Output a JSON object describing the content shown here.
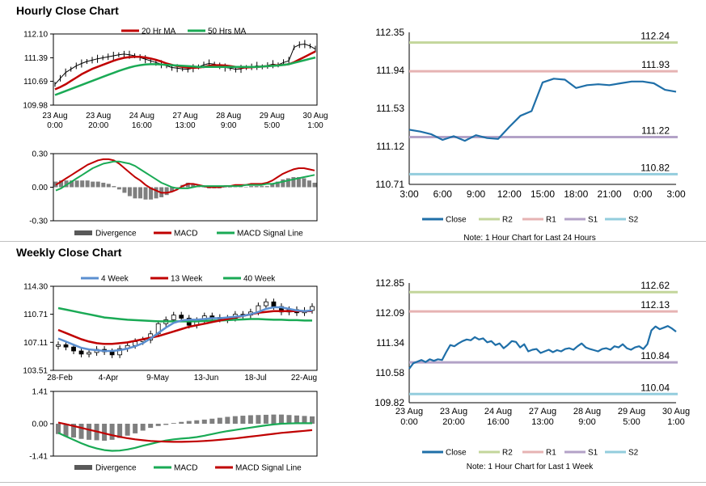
{
  "sections": {
    "hourly_title": "Hourly Close Chart",
    "weekly_title": "Weekly Close Chart"
  },
  "notes": {
    "hourly_levels": "Note: 1 Hour Chart for Last 24 Hours",
    "weekly_levels": "Note: 1 Hour Chart for Last 1 Week"
  },
  "colors": {
    "close": "#1f6fa8",
    "ma_red": "#c00000",
    "ma_green": "#1aaa55",
    "ma_blue": "#5b8fd0",
    "r2": "#c3d69b",
    "r1": "#e6b3b3",
    "s1": "#b3a2c7",
    "s2": "#93cddd",
    "hist": "#7f7f7f"
  },
  "chart_data": [
    {
      "id": "hourly_price",
      "type": "line",
      "legend": [
        "20 Hr MA",
        "50 Hrs MA"
      ],
      "yticks": [
        "112.10",
        "111.39",
        "110.69",
        "109.98"
      ],
      "ylim": [
        109.98,
        112.1
      ],
      "xticks": [
        [
          "23 Aug",
          "0:00"
        ],
        [
          "23 Aug",
          "20:00"
        ],
        [
          "24 Aug",
          "16:00"
        ],
        [
          "27 Aug",
          "13:00"
        ],
        [
          "28 Aug",
          "9:00"
        ],
        [
          "29 Aug",
          "5:00"
        ],
        [
          "30 Aug",
          "1:00"
        ]
      ],
      "close": [
        110.6,
        110.78,
        110.95,
        111.05,
        111.15,
        111.22,
        111.28,
        111.32,
        111.36,
        111.39,
        111.42,
        111.45,
        111.48,
        111.5,
        111.48,
        111.45,
        111.4,
        111.35,
        111.3,
        111.25,
        111.2,
        111.15,
        111.1,
        111.08,
        111.06,
        111.05,
        111.08,
        111.12,
        111.18,
        111.22,
        111.2,
        111.15,
        111.1,
        111.08,
        111.05,
        111.06,
        111.1,
        111.12,
        111.15,
        111.12,
        111.16,
        111.2,
        111.18,
        111.25,
        111.3,
        111.7,
        111.78,
        111.8,
        111.74,
        111.65
      ],
      "ma20": [
        110.45,
        110.52,
        110.6,
        110.7,
        110.8,
        110.9,
        110.98,
        111.06,
        111.12,
        111.18,
        111.24,
        111.3,
        111.35,
        111.39,
        111.41,
        111.42,
        111.42,
        111.4,
        111.37,
        111.33,
        111.28,
        111.22,
        111.18,
        111.14,
        111.12,
        111.1,
        111.09,
        111.1,
        111.12,
        111.15,
        111.17,
        111.17,
        111.16,
        111.14,
        111.12,
        111.1,
        111.1,
        111.11,
        111.12,
        111.13,
        111.14,
        111.16,
        111.17,
        111.18,
        111.2,
        111.26,
        111.34,
        111.42,
        111.5,
        111.58
      ],
      "ma50": [
        110.28,
        110.34,
        110.4,
        110.46,
        110.52,
        110.58,
        110.64,
        110.7,
        110.76,
        110.82,
        110.88,
        110.94,
        111.0,
        111.05,
        111.1,
        111.14,
        111.17,
        111.19,
        111.2,
        111.2,
        111.19,
        111.18,
        111.17,
        111.16,
        111.15,
        111.14,
        111.13,
        111.12,
        111.12,
        111.12,
        111.12,
        111.12,
        111.12,
        111.12,
        111.12,
        111.12,
        111.12,
        111.12,
        111.12,
        111.13,
        111.14,
        111.15,
        111.16,
        111.18,
        111.2,
        111.24,
        111.28,
        111.32,
        111.36,
        111.4
      ]
    },
    {
      "id": "hourly_macd",
      "type": "line",
      "legend": [
        "Divergence",
        "MACD",
        "MACD Signal Line"
      ],
      "yticks": [
        "0.30",
        "0.00",
        "-0.30"
      ],
      "ylim": [
        -0.3,
        0.3
      ],
      "macd": [
        0.02,
        0.05,
        0.08,
        0.11,
        0.14,
        0.17,
        0.2,
        0.22,
        0.24,
        0.25,
        0.25,
        0.24,
        0.21,
        0.17,
        0.13,
        0.09,
        0.06,
        0.02,
        -0.01,
        -0.03,
        -0.05,
        -0.05,
        -0.04,
        -0.02,
        0.01,
        0.03,
        0.03,
        0.02,
        0.01,
        0.0,
        0.0,
        0.0,
        0.01,
        0.01,
        0.02,
        0.02,
        0.02,
        0.03,
        0.03,
        0.03,
        0.04,
        0.06,
        0.09,
        0.12,
        0.14,
        0.16,
        0.17,
        0.17,
        0.16,
        0.15
      ],
      "signal": [
        -0.03,
        -0.01,
        0.02,
        0.05,
        0.08,
        0.11,
        0.14,
        0.17,
        0.19,
        0.21,
        0.22,
        0.23,
        0.23,
        0.22,
        0.21,
        0.19,
        0.16,
        0.13,
        0.1,
        0.07,
        0.04,
        0.02,
        0.0,
        -0.01,
        -0.01,
        -0.01,
        0.0,
        0.01,
        0.01,
        0.01,
        0.01,
        0.01,
        0.01,
        0.01,
        0.01,
        0.01,
        0.02,
        0.02,
        0.02,
        0.02,
        0.03,
        0.03,
        0.04,
        0.05,
        0.06,
        0.07,
        0.08,
        0.09,
        0.1,
        0.11
      ],
      "divergence": [
        0.05,
        0.06,
        0.06,
        0.06,
        0.06,
        0.06,
        0.06,
        0.05,
        0.05,
        0.04,
        0.03,
        0.01,
        -0.02,
        -0.05,
        -0.08,
        -0.1,
        -0.1,
        -0.11,
        -0.11,
        -0.1,
        -0.09,
        -0.07,
        -0.04,
        -0.01,
        0.02,
        0.04,
        0.03,
        0.01,
        0.0,
        -0.01,
        -0.01,
        -0.01,
        0.0,
        0.0,
        0.01,
        0.01,
        0.0,
        0.01,
        0.01,
        0.01,
        0.01,
        0.03,
        0.05,
        0.07,
        0.08,
        0.09,
        0.09,
        0.08,
        0.06,
        0.04
      ]
    },
    {
      "id": "hourly_levels",
      "type": "line",
      "legend": [
        "Close",
        "R2",
        "R1",
        "S1",
        "S2"
      ],
      "yticks": [
        "112.35",
        "111.94",
        "111.53",
        "111.12",
        "110.71"
      ],
      "ylim": [
        110.71,
        112.35
      ],
      "xticks": [
        "3:00",
        "6:00",
        "9:00",
        "12:00",
        "15:00",
        "18:00",
        "21:00",
        "0:00",
        "3:00"
      ],
      "levels": {
        "R2": "112.24",
        "R1": "111.93",
        "S1": "111.22",
        "S2": "110.82"
      },
      "level_values": {
        "R2": 112.24,
        "R1": 111.93,
        "S1": 111.22,
        "S2": 110.82
      },
      "close": [
        111.3,
        111.28,
        111.25,
        111.19,
        111.23,
        111.18,
        111.24,
        111.21,
        111.2,
        111.33,
        111.45,
        111.5,
        111.81,
        111.85,
        111.84,
        111.75,
        111.78,
        111.79,
        111.78,
        111.8,
        111.82,
        111.82,
        111.8,
        111.73,
        111.71
      ]
    },
    {
      "id": "weekly_price",
      "type": "line",
      "legend": [
        "4 Week",
        "13 Week",
        "40 Week"
      ],
      "yticks": [
        "114.30",
        "110.71",
        "107.11",
        "103.51"
      ],
      "ylim": [
        103.51,
        114.3
      ],
      "xticks": [
        "28-Feb",
        "4-Apr",
        "9-May",
        "13-Jun",
        "18-Jul",
        "22-Aug"
      ],
      "close": [
        106.8,
        106.5,
        106.0,
        105.6,
        105.8,
        106.2,
        105.9,
        105.5,
        106.3,
        106.7,
        107.2,
        107.4,
        108.2,
        109.5,
        110.0,
        110.6,
        110.2,
        109.3,
        109.9,
        110.5,
        110.3,
        110.1,
        110.2,
        110.7,
        110.6,
        111.0,
        111.8,
        112.3,
        111.7,
        111.0,
        111.3,
        110.9,
        111.2,
        111.7
      ],
      "ma4": [
        107.6,
        107.2,
        106.8,
        106.4,
        106.2,
        106.1,
        106.0,
        106.0,
        106.1,
        106.3,
        106.6,
        107.0,
        107.6,
        108.3,
        109.0,
        109.6,
        109.9,
        110.0,
        110.0,
        110.1,
        110.2,
        110.2,
        110.3,
        110.4,
        110.5,
        110.7,
        111.0,
        111.4,
        111.6,
        111.6,
        111.4,
        111.2,
        111.1,
        111.2
      ],
      "ma13": [
        108.7,
        108.3,
        107.9,
        107.5,
        107.2,
        107.0,
        106.9,
        106.9,
        107.0,
        107.1,
        107.3,
        107.5,
        107.7,
        107.9,
        108.2,
        108.5,
        108.8,
        109.1,
        109.3,
        109.5,
        109.7,
        109.9,
        110.1,
        110.3,
        110.5,
        110.7,
        110.9,
        111.0,
        111.1,
        111.1,
        111.1,
        111.1,
        111.1,
        111.1
      ],
      "ma40": [
        111.5,
        111.3,
        111.1,
        110.9,
        110.7,
        110.5,
        110.3,
        110.2,
        110.1,
        110.0,
        109.95,
        109.9,
        109.85,
        109.8,
        109.8,
        109.8,
        109.8,
        109.8,
        109.8,
        109.85,
        109.9,
        109.9,
        109.95,
        110.0,
        110.05,
        110.1,
        110.1,
        110.05,
        110.0,
        110.0,
        109.95,
        109.95,
        109.9,
        109.9
      ]
    },
    {
      "id": "weekly_macd",
      "type": "line",
      "legend": [
        "Divergence",
        "MACD",
        "MACD Signal Line"
      ],
      "yticks": [
        "1.41",
        "0.00",
        "-1.41"
      ],
      "ylim": [
        -1.41,
        1.41
      ],
      "macd": [
        -0.4,
        -0.55,
        -0.7,
        -0.85,
        -0.98,
        -1.08,
        -1.15,
        -1.18,
        -1.17,
        -1.12,
        -1.05,
        -0.96,
        -0.88,
        -0.8,
        -0.73,
        -0.68,
        -0.65,
        -0.62,
        -0.58,
        -0.52,
        -0.45,
        -0.38,
        -0.32,
        -0.27,
        -0.22,
        -0.17,
        -0.12,
        -0.07,
        -0.03,
        0.0,
        0.01,
        0.02,
        0.02,
        0.02
      ],
      "signal": [
        0.05,
        -0.02,
        -0.1,
        -0.18,
        -0.26,
        -0.34,
        -0.42,
        -0.5,
        -0.57,
        -0.63,
        -0.68,
        -0.72,
        -0.75,
        -0.77,
        -0.78,
        -0.79,
        -0.79,
        -0.78,
        -0.77,
        -0.75,
        -0.73,
        -0.7,
        -0.67,
        -0.64,
        -0.6,
        -0.56,
        -0.52,
        -0.48,
        -0.44,
        -0.4,
        -0.37,
        -0.34,
        -0.31,
        -0.28
      ],
      "divergence": [
        -0.45,
        -0.55,
        -0.6,
        -0.66,
        -0.7,
        -0.72,
        -0.74,
        -0.7,
        -0.62,
        -0.52,
        -0.42,
        -0.3,
        -0.18,
        -0.1,
        -0.05,
        0.03,
        0.08,
        0.12,
        0.15,
        0.18,
        0.22,
        0.26,
        0.3,
        0.33,
        0.35,
        0.37,
        0.38,
        0.39,
        0.4,
        0.4,
        0.38,
        0.36,
        0.34,
        0.32
      ]
    },
    {
      "id": "weekly_levels",
      "type": "line",
      "legend": [
        "Close",
        "R2",
        "R1",
        "S1",
        "S2"
      ],
      "yticks": [
        "112.85",
        "112.09",
        "111.34",
        "110.58",
        "109.82"
      ],
      "ylim": [
        109.82,
        112.85
      ],
      "xticks": [
        [
          "23 Aug",
          "0:00"
        ],
        [
          "23 Aug",
          "20:00"
        ],
        [
          "24 Aug",
          "16:00"
        ],
        [
          "27 Aug",
          "13:00"
        ],
        [
          "28 Aug",
          "9:00"
        ],
        [
          "29 Aug",
          "5:00"
        ],
        [
          "30 Aug",
          "1:00"
        ]
      ],
      "levels": {
        "R2": "112.62",
        "R1": "112.13",
        "S1": "110.84",
        "S2": "110.04"
      },
      "level_values": {
        "R2": 112.62,
        "R1": 112.13,
        "S1": 110.84,
        "S2": 110.04
      },
      "close": [
        110.68,
        110.82,
        110.86,
        110.9,
        110.85,
        110.92,
        110.88,
        110.92,
        110.9,
        111.1,
        111.28,
        111.25,
        111.32,
        111.38,
        111.42,
        111.4,
        111.48,
        111.42,
        111.45,
        111.35,
        111.38,
        111.28,
        111.32,
        111.2,
        111.28,
        111.38,
        111.36,
        111.22,
        111.3,
        111.12,
        111.16,
        111.18,
        111.08,
        111.12,
        111.16,
        111.1,
        111.15,
        111.12,
        111.18,
        111.2,
        111.16,
        111.25,
        111.32,
        111.22,
        111.18,
        111.15,
        111.12,
        111.18,
        111.2,
        111.16,
        111.25,
        111.22,
        111.3,
        111.2,
        111.16,
        111.22,
        111.25,
        111.18,
        111.3,
        111.65,
        111.75,
        111.68,
        111.72,
        111.76,
        111.7,
        111.62
      ]
    }
  ]
}
